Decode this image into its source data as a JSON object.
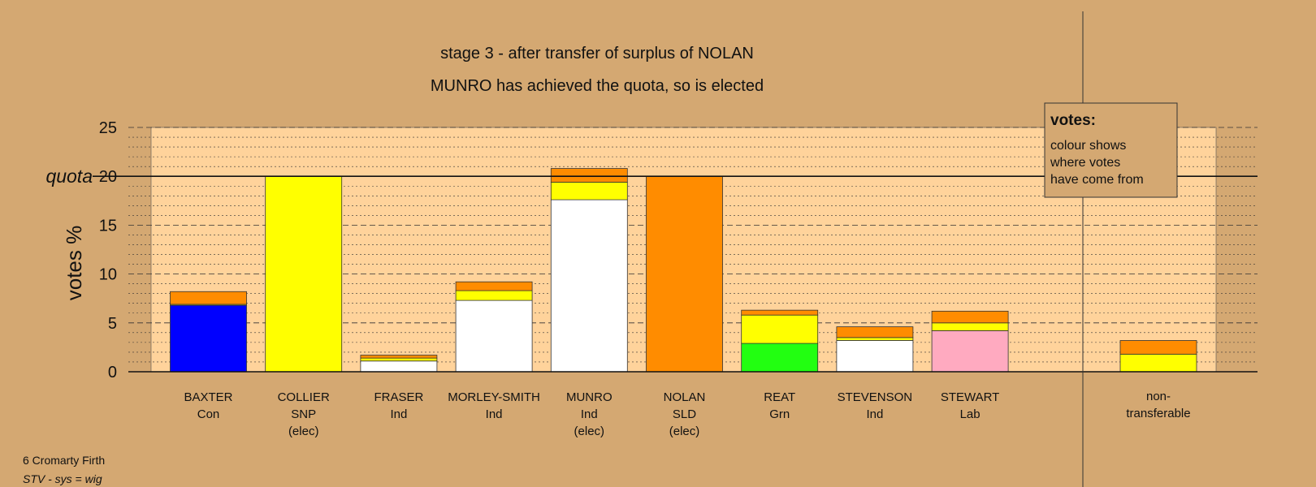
{
  "colors": {
    "background": "#d4a872",
    "plot_area": "#ffd39b",
    "Con": "#0000ff",
    "SNP": "#ffff00",
    "Ind": "#ffffff",
    "SLD": "#ff8c00",
    "Grn": "#22ff11",
    "Lab": "#ffaac0"
  },
  "chart_data": {
    "type": "bar",
    "stacked": true,
    "title": "stage 3 - after transfer of surplus of NOLAN",
    "subtitle": "MUNRO has achieved the quota, so is elected",
    "ylabel": "votes %",
    "ylim": [
      0,
      25
    ],
    "yticks": [
      "0",
      "5",
      "10",
      "15",
      "20",
      "25"
    ],
    "quota": 20,
    "quota_label": "quota",
    "grid": true,
    "categories": [
      {
        "name": "BAXTER",
        "party": "Con",
        "note": ""
      },
      {
        "name": "COLLIER",
        "party": "SNP",
        "note": "(elec)"
      },
      {
        "name": "FRASER",
        "party": "Ind",
        "note": ""
      },
      {
        "name": "MORLEY-SMITH",
        "party": "Ind",
        "note": ""
      },
      {
        "name": "MUNRO",
        "party": "Ind",
        "note": "(elec)"
      },
      {
        "name": "NOLAN",
        "party": "SLD",
        "note": "(elec)"
      },
      {
        "name": "REAT",
        "party": "Grn",
        "note": ""
      },
      {
        "name": "STEVENSON",
        "party": "Ind",
        "note": ""
      },
      {
        "name": "STEWART",
        "party": "Lab",
        "note": ""
      }
    ],
    "bars": [
      [
        {
          "from": "Con",
          "value": 6.8
        },
        {
          "from": "SNP",
          "value": 0.1
        },
        {
          "from": "SLD",
          "value": 1.3
        }
      ],
      [
        {
          "from": "SNP",
          "value": 20.0
        }
      ],
      [
        {
          "from": "Ind",
          "value": 1.1
        },
        {
          "from": "SNP",
          "value": 0.3
        },
        {
          "from": "SLD",
          "value": 0.3
        }
      ],
      [
        {
          "from": "Ind",
          "value": 7.3
        },
        {
          "from": "SNP",
          "value": 1.0
        },
        {
          "from": "SLD",
          "value": 0.9
        }
      ],
      [
        {
          "from": "Ind",
          "value": 17.6
        },
        {
          "from": "SNP",
          "value": 1.8
        },
        {
          "from": "SLD",
          "value": 1.4
        }
      ],
      [
        {
          "from": "SLD",
          "value": 20.0
        }
      ],
      [
        {
          "from": "Grn",
          "value": 2.9
        },
        {
          "from": "SNP",
          "value": 2.9
        },
        {
          "from": "SLD",
          "value": 0.5
        }
      ],
      [
        {
          "from": "Ind",
          "value": 3.2
        },
        {
          "from": "SNP",
          "value": 0.3
        },
        {
          "from": "SLD",
          "value": 1.1
        }
      ],
      [
        {
          "from": "Lab",
          "value": 4.2
        },
        {
          "from": "SNP",
          "value": 0.8
        },
        {
          "from": "SLD",
          "value": 1.2
        }
      ]
    ],
    "nontransferable": {
      "label_line1": "non-",
      "label_line2": "transferable",
      "segments": [
        {
          "from": "SNP",
          "value": 1.8
        },
        {
          "from": "SLD",
          "value": 1.4
        }
      ]
    },
    "legend": {
      "title": "votes:",
      "lines": [
        "colour shows",
        "where votes",
        "have come from"
      ]
    }
  },
  "footer": {
    "constituency": "6 Cromarty Firth",
    "system": "STV - sys = wig"
  }
}
